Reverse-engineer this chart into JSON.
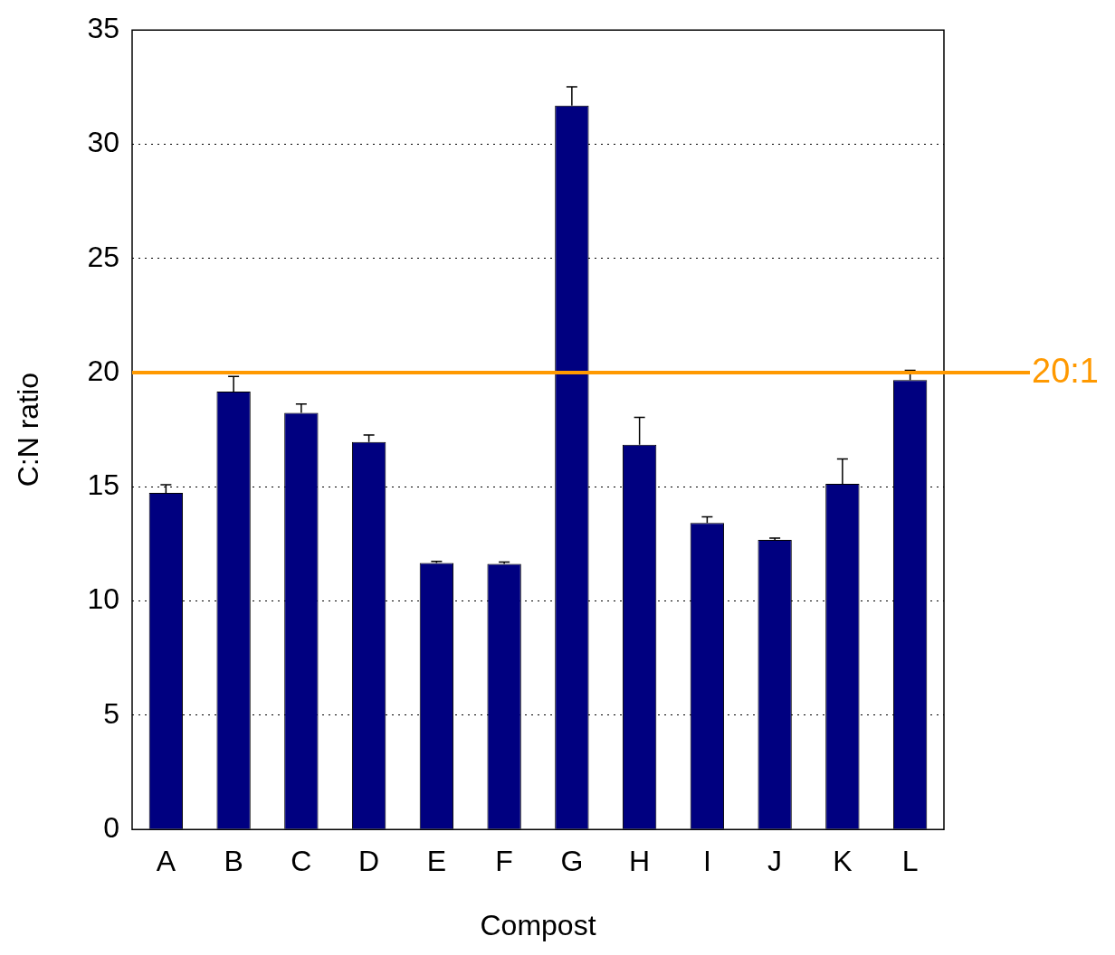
{
  "chart_data": {
    "type": "bar",
    "xlabel": "Compost",
    "ylabel": "C:N ratio",
    "categories": [
      "A",
      "B",
      "C",
      "D",
      "E",
      "F",
      "G",
      "H",
      "I",
      "J",
      "K",
      "L"
    ],
    "values": [
      14.74,
      19.17,
      18.24,
      16.96,
      11.67,
      11.63,
      31.69,
      16.84,
      13.42,
      12.68,
      15.13,
      19.68
    ],
    "errors": [
      [
        14.74,
        15.09
      ],
      [
        19.17,
        19.83
      ],
      [
        18.24,
        18.63
      ],
      [
        16.96,
        17.27
      ],
      [
        11.67,
        11.74
      ],
      [
        11.63,
        11.71
      ],
      [
        31.69,
        32.51
      ],
      [
        16.84,
        18.04
      ],
      [
        13.42,
        13.69
      ],
      [
        12.68,
        12.76
      ],
      [
        15.13,
        16.22
      ],
      [
        19.68,
        20.1
      ]
    ],
    "color": "#000080",
    "ylim": [
      0,
      35
    ],
    "yticks": [
      0,
      5,
      10,
      15,
      20,
      25,
      30,
      35
    ],
    "grid": "y",
    "legend": false,
    "ref_lines": [
      {
        "axis": "y",
        "value": 20,
        "label": "20:1",
        "color": "#ff9900"
      }
    ]
  }
}
